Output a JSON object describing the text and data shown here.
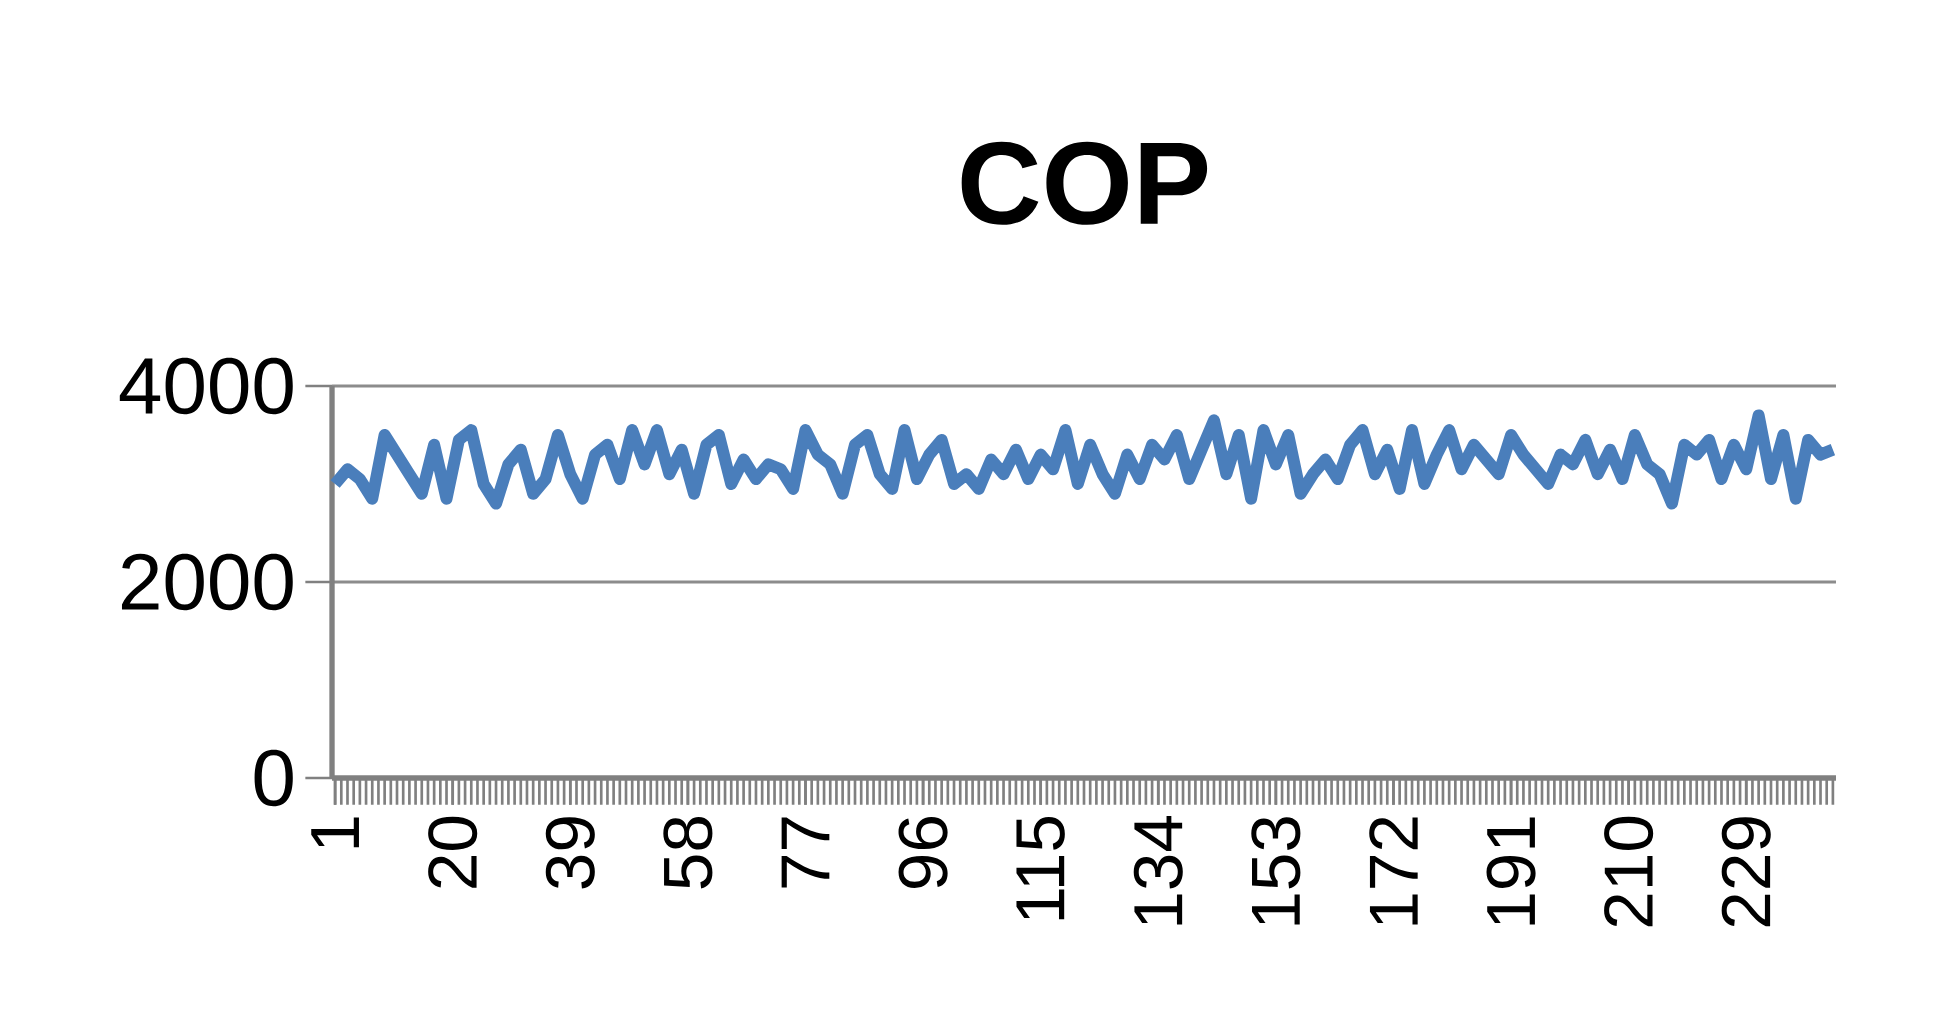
{
  "chart_data": {
    "type": "line",
    "title": "COP",
    "x": [
      1,
      3,
      5,
      7,
      9,
      11,
      13,
      15,
      17,
      19,
      21,
      23,
      25,
      27,
      29,
      31,
      33,
      35,
      37,
      39,
      41,
      43,
      45,
      47,
      49,
      51,
      53,
      55,
      57,
      59,
      61,
      63,
      65,
      67,
      69,
      71,
      73,
      75,
      77,
      79,
      81,
      83,
      85,
      87,
      89,
      91,
      93,
      95,
      97,
      99,
      101,
      103,
      105,
      107,
      109,
      111,
      113,
      115,
      117,
      119,
      121,
      123,
      125,
      127,
      129,
      131,
      133,
      135,
      137,
      139,
      141,
      143,
      145,
      147,
      149,
      151,
      153,
      155,
      157,
      159,
      161,
      163,
      165,
      167,
      169,
      171,
      173,
      175,
      177,
      179,
      181,
      183,
      185,
      187,
      189,
      191,
      193,
      195,
      197,
      199,
      201,
      203,
      205,
      207,
      209,
      211,
      213,
      215,
      217,
      219,
      221,
      223,
      225,
      227,
      229,
      231,
      233,
      235,
      237,
      239,
      241,
      243
    ],
    "values": [
      3000,
      3150,
      3050,
      2850,
      3500,
      3300,
      3100,
      2900,
      3400,
      2850,
      3450,
      3550,
      3000,
      2800,
      3200,
      3350,
      2900,
      3050,
      3500,
      3100,
      2850,
      3300,
      3400,
      3050,
      3550,
      3200,
      3550,
      3100,
      3350,
      2900,
      3400,
      3500,
      3000,
      3250,
      3050,
      3200,
      3150,
      2950,
      3550,
      3300,
      3200,
      2900,
      3400,
      3500,
      3100,
      2950,
      3550,
      3050,
      3300,
      3450,
      3000,
      3100,
      2950,
      3250,
      3100,
      3350,
      3050,
      3300,
      3150,
      3550,
      3000,
      3400,
      3100,
      2900,
      3300,
      3050,
      3400,
      3250,
      3500,
      3050,
      3350,
      3650,
      3100,
      3500,
      2850,
      3550,
      3200,
      3500,
      2900,
      3100,
      3250,
      3050,
      3400,
      3550,
      3100,
      3350,
      2950,
      3550,
      3000,
      3300,
      3550,
      3150,
      3400,
      3250,
      3100,
      3500,
      3300,
      3150,
      3000,
      3300,
      3200,
      3450,
      3100,
      3350,
      3050,
      3500,
      3200,
      3100,
      2800,
      3400,
      3300,
      3450,
      3050,
      3400,
      3150,
      3700,
      3050,
      3500,
      2850,
      3450,
      3300,
      3350
    ],
    "color": "#4a7ebb",
    "xlim": [
      0.5,
      243.5
    ],
    "xticks": [
      1,
      20,
      39,
      58,
      77,
      96,
      115,
      134,
      153,
      172,
      191,
      210,
      229
    ],
    "ylim": [
      0,
      4000
    ],
    "yticks": [
      0,
      2000,
      4000
    ],
    "grid": "y",
    "line_style": "solid",
    "marker": "none"
  }
}
